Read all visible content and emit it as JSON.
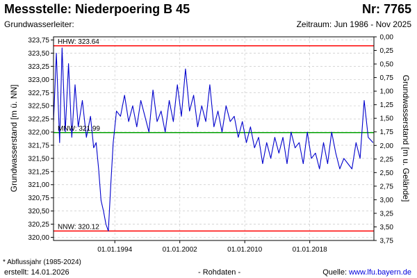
{
  "header": {
    "title": "Messstelle: Niederpoering B 45",
    "nr": "Nr: 7765",
    "subtitle_left": "Grundwasserleiter:",
    "subtitle_right": "Zeitraum: Jun 1986 - Nov 2025"
  },
  "footer": {
    "footnote": "* Abflussjahr (1985-2024)",
    "created": "erstellt:  14.01.2026",
    "rohdaten": "- Rohdaten -",
    "source_label": "Quelle: ",
    "source_link": "www.lfu.bayern.de"
  },
  "chart_data": {
    "type": "line",
    "xlabel": "",
    "ylabel": "Grundwasserstand [m ü. NN]",
    "ylabel_right": "Grundwasserstand [m u. Gelände]",
    "xlim": [
      1986.45,
      2025.9
    ],
    "ylim": [
      319.94,
      323.81
    ],
    "ylim_right": [
      3.75,
      0.0
    ],
    "x_ticks": [
      1994,
      2002,
      2010,
      2018
    ],
    "x_tick_labels": [
      "01.01.1994",
      "01.01.2002",
      "01.01.2010",
      "01.01.2018"
    ],
    "y_ticks": [
      320.0,
      320.25,
      320.5,
      320.75,
      321.0,
      321.25,
      321.5,
      321.75,
      322.0,
      322.25,
      322.5,
      322.75,
      323.0,
      323.25,
      323.5,
      323.75
    ],
    "y_tick_labels": [
      "320,00",
      "320,25",
      "320,50",
      "320,75",
      "321,00",
      "321,25",
      "321,50",
      "321,75",
      "322,00",
      "322,25",
      "322,50",
      "322,75",
      "323,00",
      "323,25",
      "323,50",
      "323,75"
    ],
    "y_right_ticks": [
      0.0,
      0.25,
      0.5,
      0.75,
      1.0,
      1.25,
      1.5,
      1.75,
      2.0,
      2.25,
      2.5,
      2.75,
      3.0,
      3.25,
      3.5,
      3.75
    ],
    "y_right_tick_labels": [
      "0,00",
      "0,25",
      "0,50",
      "0,75",
      "1,00",
      "1,25",
      "1,50",
      "1,75",
      "2,00",
      "2,25",
      "2,50",
      "2,75",
      "3,00",
      "3,25",
      "3,50",
      "3,75"
    ],
    "grid": true,
    "reference_lines": [
      {
        "label": "HHW: 323.64",
        "value": 323.64,
        "color": "#ff0000"
      },
      {
        "label": "MNW: 321.99",
        "value": 321.99,
        "color": "#00a000"
      },
      {
        "label": "NNW: 320.12",
        "value": 320.12,
        "color": "#ff0000"
      }
    ],
    "series": [
      {
        "color": "#0000cc",
        "x": [
          1986.45,
          1986.8,
          1987.2,
          1987.5,
          1987.9,
          1988.3,
          1988.7,
          1989.1,
          1989.5,
          1990.0,
          1990.5,
          1991.0,
          1991.4,
          1991.7,
          1992.0,
          1992.3,
          1992.6,
          1992.9,
          1993.2,
          1993.5,
          1993.8,
          1994.2,
          1994.7,
          1995.2,
          1995.7,
          1996.2,
          1996.7,
          1997.2,
          1997.7,
          1998.2,
          1998.7,
          1999.2,
          1999.7,
          2000.2,
          2000.7,
          2001.2,
          2001.7,
          2002.2,
          2002.7,
          2003.2,
          2003.7,
          2004.2,
          2004.7,
          2005.2,
          2005.7,
          2006.2,
          2006.7,
          2007.2,
          2007.7,
          2008.2,
          2008.7,
          2009.2,
          2009.7,
          2010.2,
          2010.7,
          2011.2,
          2011.7,
          2012.2,
          2012.7,
          2013.2,
          2013.7,
          2014.2,
          2014.7,
          2015.2,
          2015.7,
          2016.2,
          2016.7,
          2017.2,
          2017.7,
          2018.2,
          2018.7,
          2019.2,
          2019.7,
          2020.2,
          2020.7,
          2021.2,
          2021.7,
          2022.2,
          2022.7,
          2023.2,
          2023.7,
          2024.2,
          2024.7,
          2025.2,
          2025.8
        ],
        "y": [
          322.2,
          323.5,
          321.8,
          323.6,
          322.0,
          323.3,
          321.9,
          322.9,
          322.1,
          322.6,
          321.9,
          322.3,
          321.7,
          321.8,
          321.3,
          320.7,
          320.5,
          320.25,
          320.12,
          321.0,
          321.8,
          322.4,
          322.3,
          322.7,
          322.2,
          322.5,
          322.1,
          322.6,
          322.3,
          322.0,
          322.8,
          322.2,
          322.4,
          322.0,
          322.6,
          322.2,
          322.9,
          322.3,
          323.2,
          322.4,
          322.7,
          322.1,
          322.5,
          322.2,
          322.9,
          322.1,
          322.4,
          322.0,
          322.5,
          322.2,
          322.3,
          321.9,
          322.2,
          321.8,
          322.1,
          321.7,
          321.9,
          321.4,
          321.8,
          321.5,
          321.9,
          321.6,
          321.9,
          321.4,
          322.0,
          321.7,
          321.8,
          321.4,
          322.0,
          321.5,
          321.6,
          321.3,
          321.8,
          321.4,
          322.0,
          321.6,
          321.3,
          321.5,
          321.4,
          321.3,
          321.8,
          321.5,
          322.6,
          321.9,
          321.8
        ]
      }
    ]
  }
}
